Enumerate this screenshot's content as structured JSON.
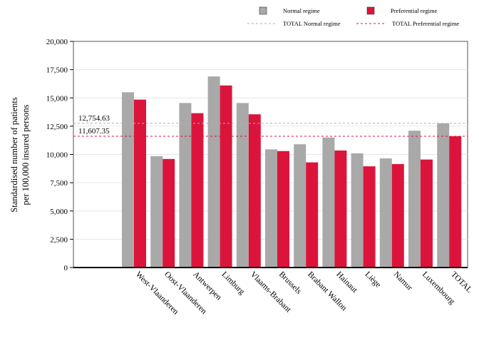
{
  "chart_data": {
    "type": "bar",
    "categories": [
      "West-Vlaanderen",
      "Oost-Vlaanderen",
      "Antwerpen",
      "Limburg",
      "Vlaams-Brabant",
      "Brussels",
      "Brabant Wallon",
      "Hainaut",
      "Liège",
      "Namur",
      "Luxembourg",
      "TOTAL"
    ],
    "series": [
      {
        "name": "Normal regime",
        "color": "#a9a9a9",
        "values": [
          15500,
          9850,
          14550,
          16900,
          14550,
          10450,
          10900,
          11500,
          10100,
          9650,
          12100,
          12754.63
        ]
      },
      {
        "name": "Preferential regime",
        "color": "#dc143c",
        "values": [
          14850,
          9600,
          13650,
          16100,
          13550,
          10300,
          9300,
          10350,
          8950,
          9150,
          9550,
          11607.35
        ]
      }
    ],
    "reference_lines": [
      {
        "name": "TOTAL Normal regime",
        "value": 12754.63,
        "label": "12,754.63",
        "color": "#b0b0b0"
      },
      {
        "name": "TOTAL Preferential regime",
        "value": 11607.35,
        "label": "11,607.35",
        "color": "#dc143c"
      }
    ],
    "ylabel": "Standardised number of patients\nper 100,000 insured persons",
    "xlabel": "",
    "ylim": [
      0,
      20000
    ],
    "yticks": [
      "0",
      "2,500",
      "5,000",
      "7,500",
      "10,000",
      "12,500",
      "15,000",
      "17,500",
      "20,000"
    ],
    "grid": true,
    "legend_position": "top-right"
  }
}
